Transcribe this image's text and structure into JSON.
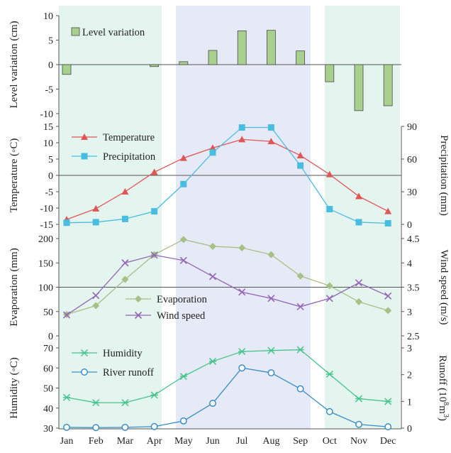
{
  "colors": {
    "winter_shade": "#e4f4ef",
    "summer_shade": "#e6eaf6",
    "level_bar_fill": "#a9cf8e",
    "level_bar_stroke": "#4a4a4a",
    "temperature": "#e05555",
    "precipitation": "#49bde0",
    "evaporation": "#a8bf86",
    "wind_speed": "#9366b5",
    "humidity": "#47c48c",
    "river_runoff": "#3c8dc6",
    "axis": "#555555"
  },
  "chart_data": [
    {
      "type": "bar",
      "id": "level",
      "categories": [
        "Jan",
        "Feb",
        "Mar",
        "Apr",
        "May",
        "Jun",
        "Jul",
        "Aug",
        "Sep",
        "Oct",
        "Nov",
        "Dec"
      ],
      "series": [
        {
          "name": "Level variation",
          "values": [
            -2.0,
            0,
            0,
            -0.4,
            0.6,
            2.9,
            6.9,
            7.0,
            2.8,
            -3.5,
            -9.4,
            -8.4
          ]
        }
      ],
      "ylabel": "Level variation (cm)",
      "ylim": [
        -10,
        10
      ],
      "yticks": [
        "10",
        "5",
        "0",
        "-5",
        "-10"
      ],
      "legend": "top-left"
    },
    {
      "type": "line",
      "id": "temp-precip",
      "categories": [
        "Jan",
        "Feb",
        "Mar",
        "Apr",
        "May",
        "Jun",
        "Jul",
        "Aug",
        "Sep",
        "Oct",
        "Nov",
        "Dec"
      ],
      "series": [
        {
          "name": "Temperature",
          "axis": "left",
          "marker": "triangle",
          "values": [
            -13.5,
            -10.2,
            -5.0,
            1.0,
            5.3,
            8.4,
            11.0,
            10.4,
            6.1,
            0.3,
            -6.4,
            -11.0
          ]
        },
        {
          "name": "Precipitation",
          "axis": "right",
          "marker": "square",
          "values": [
            1.5,
            2.0,
            5.0,
            12.0,
            37.0,
            66.0,
            89.0,
            89.0,
            54.0,
            14.0,
            2.0,
            1.0
          ]
        }
      ],
      "ylabel": "Temperature (◦C)",
      "y2label": "Precipitation (mm)",
      "ylim": [
        -15,
        15
      ],
      "y2lim": [
        0,
        90
      ],
      "yticks": [
        "15",
        "10",
        "5",
        "0",
        "-5",
        "-10",
        "-15"
      ],
      "y2ticks": [
        "90",
        "60",
        "30",
        "0"
      ],
      "legend": "top-left"
    },
    {
      "type": "line",
      "id": "evap-wind",
      "categories": [
        "Jan",
        "Feb",
        "Mar",
        "Apr",
        "May",
        "Jun",
        "Jul",
        "Aug",
        "Sep",
        "Oct",
        "Nov",
        "Dec"
      ],
      "series": [
        {
          "name": "Evaporation",
          "axis": "left",
          "marker": "diamond",
          "values": [
            44,
            62,
            116,
            167,
            198,
            184,
            181,
            167,
            123,
            103,
            70,
            52
          ]
        },
        {
          "name": "Wind speed",
          "axis": "right",
          "marker": "x",
          "values": [
            2.93,
            3.33,
            4.0,
            4.16,
            4.05,
            3.72,
            3.4,
            3.27,
            3.1,
            3.27,
            3.59,
            3.32
          ]
        }
      ],
      "ylabel": "Evaporation (mm)",
      "y2label": "Wind speed (m/s)",
      "ylim": [
        0,
        200
      ],
      "y2lim": [
        2.5,
        4.5
      ],
      "yticks": [
        "200",
        "150",
        "100",
        "50",
        "0"
      ],
      "y2ticks": [
        "4.5",
        "4",
        "3.5",
        "3",
        "2.5"
      ],
      "legend": "bottom-center"
    },
    {
      "type": "line",
      "id": "humid-runoff",
      "categories": [
        "Jan",
        "Feb",
        "Mar",
        "Apr",
        "May",
        "Jun",
        "Jul",
        "Aug",
        "Sep",
        "Oct",
        "Nov",
        "Dec"
      ],
      "series": [
        {
          "name": "Humidity",
          "axis": "left",
          "marker": "asterisk",
          "values": [
            45.3,
            42.7,
            42.7,
            46.5,
            55.8,
            63.3,
            68.2,
            68.7,
            69.1,
            56.9,
            44.7,
            43.3
          ]
        },
        {
          "name": "River runoff",
          "axis": "right",
          "marker": "circle",
          "values": [
            0.03,
            0.02,
            0.03,
            0.06,
            0.27,
            0.93,
            2.25,
            2.07,
            1.47,
            0.62,
            0.14,
            0.05
          ]
        }
      ],
      "ylabel": "Humidity (◦C)",
      "y2label_main": "Runoff (10",
      "y2label_sup": "8",
      "y2label_mid": "m",
      "y2label_sup2": "3",
      "y2label_end": ")",
      "ylim": [
        30,
        70
      ],
      "y2lim": [
        0,
        3
      ],
      "yticks": [
        "70",
        "60",
        "50",
        "40",
        "30"
      ],
      "y2ticks": [
        "3",
        "2",
        "1",
        "0"
      ],
      "legend": "top-left"
    }
  ],
  "x_tick_labels": [
    "Jan",
    "Feb",
    "Mar",
    "Apr",
    "May",
    "Jun",
    "Jul",
    "Aug",
    "Sep",
    "Oct",
    "Nov",
    "Dec"
  ]
}
